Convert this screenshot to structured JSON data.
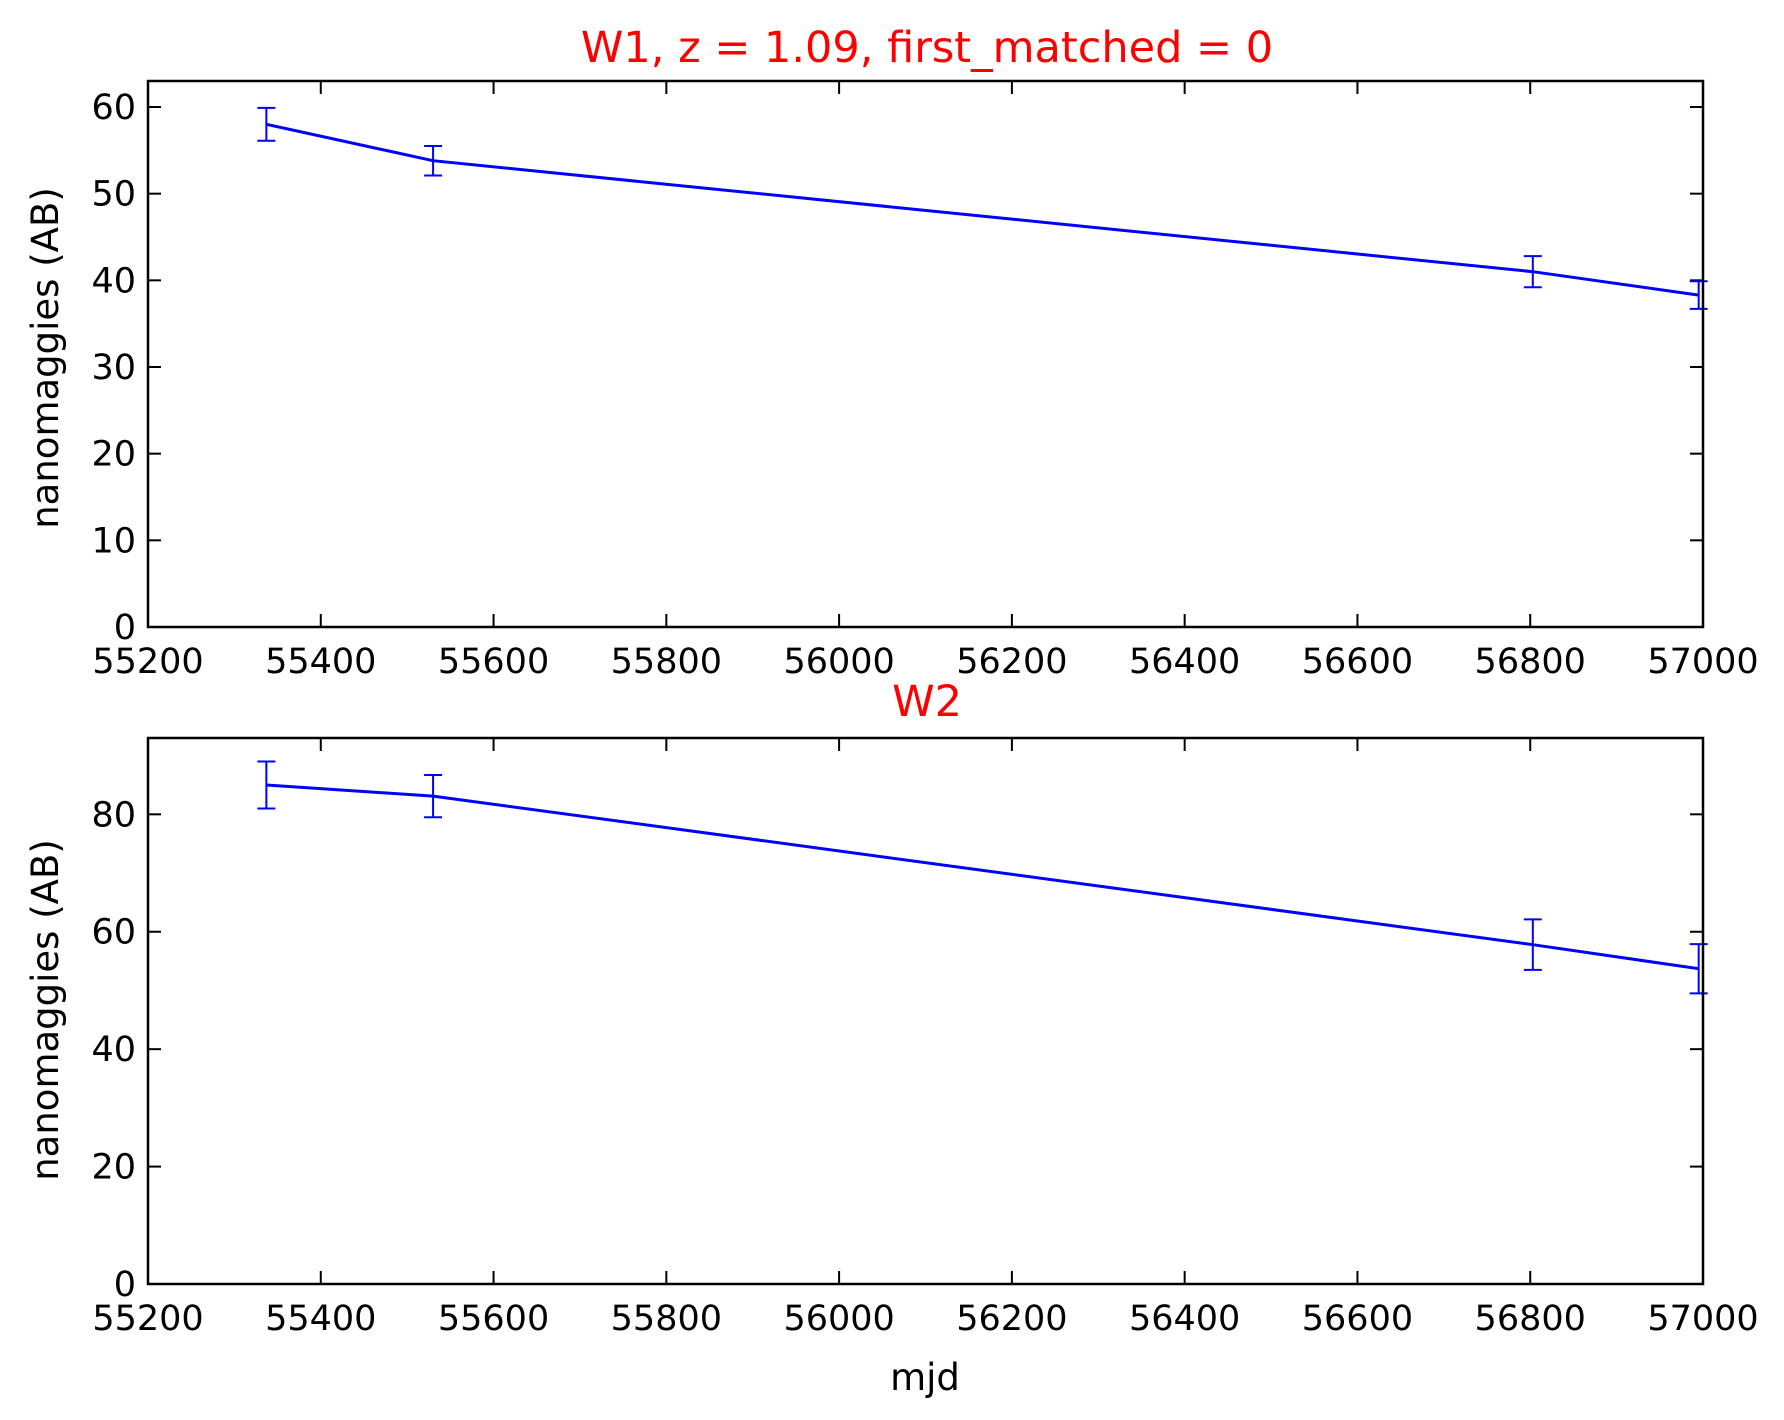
{
  "chart_data": [
    {
      "type": "line",
      "title": "W1, z = 1.09, first_matched = 0",
      "xlabel": "",
      "ylabel": "nanomaggies (AB)",
      "xlim": [
        55200,
        57000
      ],
      "ylim": [
        0,
        63
      ],
      "xticks": [
        55200,
        55400,
        55600,
        55800,
        56000,
        56200,
        56400,
        56600,
        56800,
        57000
      ],
      "yticks": [
        0,
        10,
        20,
        30,
        40,
        50,
        60
      ],
      "grid": false,
      "series": [
        {
          "color": "#0000ff",
          "x": [
            55337,
            55530,
            56803,
            56995
          ],
          "y": [
            58.0,
            53.8,
            41.0,
            38.3
          ],
          "yerr": [
            1.9,
            1.7,
            1.8,
            1.6
          ]
        }
      ]
    },
    {
      "type": "line",
      "title": "W2",
      "xlabel": "mjd",
      "ylabel": "nanomaggies (AB)",
      "xlim": [
        55200,
        57000
      ],
      "ylim": [
        0,
        93
      ],
      "xticks": [
        55200,
        55400,
        55600,
        55800,
        56000,
        56200,
        56400,
        56600,
        56800,
        57000
      ],
      "yticks": [
        0,
        20,
        40,
        60,
        80
      ],
      "grid": false,
      "series": [
        {
          "color": "#0000ff",
          "x": [
            55337,
            55530,
            56803,
            56995
          ],
          "y": [
            85.0,
            83.1,
            57.8,
            53.7
          ],
          "yerr": [
            4.0,
            3.6,
            4.3,
            4.2
          ]
        }
      ]
    }
  ]
}
